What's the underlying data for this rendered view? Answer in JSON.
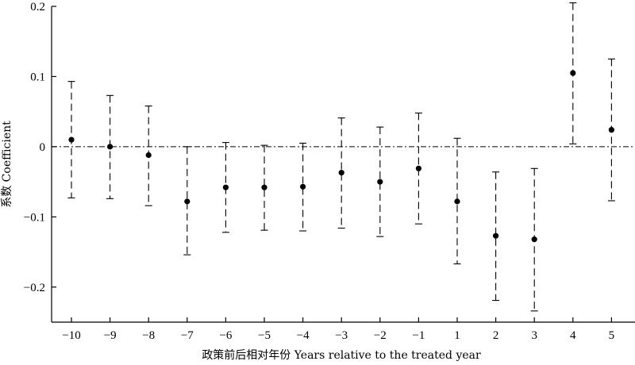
{
  "chart_data": {
    "type": "scatter",
    "subtype": "coefficient-plot-with-error-bars",
    "xlabel": "政策前后相对年份 Years relative to the treated year",
    "ylabel": "系数 Coefficient",
    "categories": [
      "-10",
      "-9",
      "-8",
      "-7",
      "-6",
      "-5",
      "-4",
      "-3",
      "-2",
      "-1",
      "1",
      "2",
      "3",
      "4",
      "5"
    ],
    "coefficients": [
      0.01,
      0.0,
      -0.012,
      -0.078,
      -0.058,
      -0.058,
      -0.057,
      -0.037,
      -0.05,
      -0.031,
      -0.078,
      -0.127,
      -0.132,
      0.105,
      0.024
    ],
    "ci_upper": [
      0.093,
      0.073,
      0.058,
      0.0,
      0.006,
      0.002,
      0.005,
      0.041,
      0.028,
      0.048,
      0.012,
      -0.036,
      -0.031,
      0.205,
      0.125
    ],
    "ci_lower": [
      -0.073,
      -0.074,
      -0.084,
      -0.154,
      -0.122,
      -0.119,
      -0.12,
      -0.116,
      -0.128,
      -0.11,
      -0.167,
      -0.219,
      -0.234,
      0.004,
      -0.077
    ],
    "ylim": [
      -0.25,
      0.2
    ],
    "yticks": [
      0.2,
      0.1,
      0,
      -0.1,
      -0.2
    ],
    "ytick_labels": [
      "0.2",
      "0.1",
      "0",
      "−0.1",
      "−0.2"
    ],
    "xtick_labels": [
      "−10",
      "−9",
      "−8",
      "−7",
      "−6",
      "−5",
      "−4",
      "−3",
      "−2",
      "−1",
      "1",
      "2",
      "3",
      "4",
      "5"
    ],
    "reference_line": {
      "y": 0,
      "style": "dash-dot"
    },
    "grid": false,
    "legend": "none",
    "colors": {
      "points": "#000000",
      "error_bars": "#000000",
      "axes": "#000000"
    }
  }
}
